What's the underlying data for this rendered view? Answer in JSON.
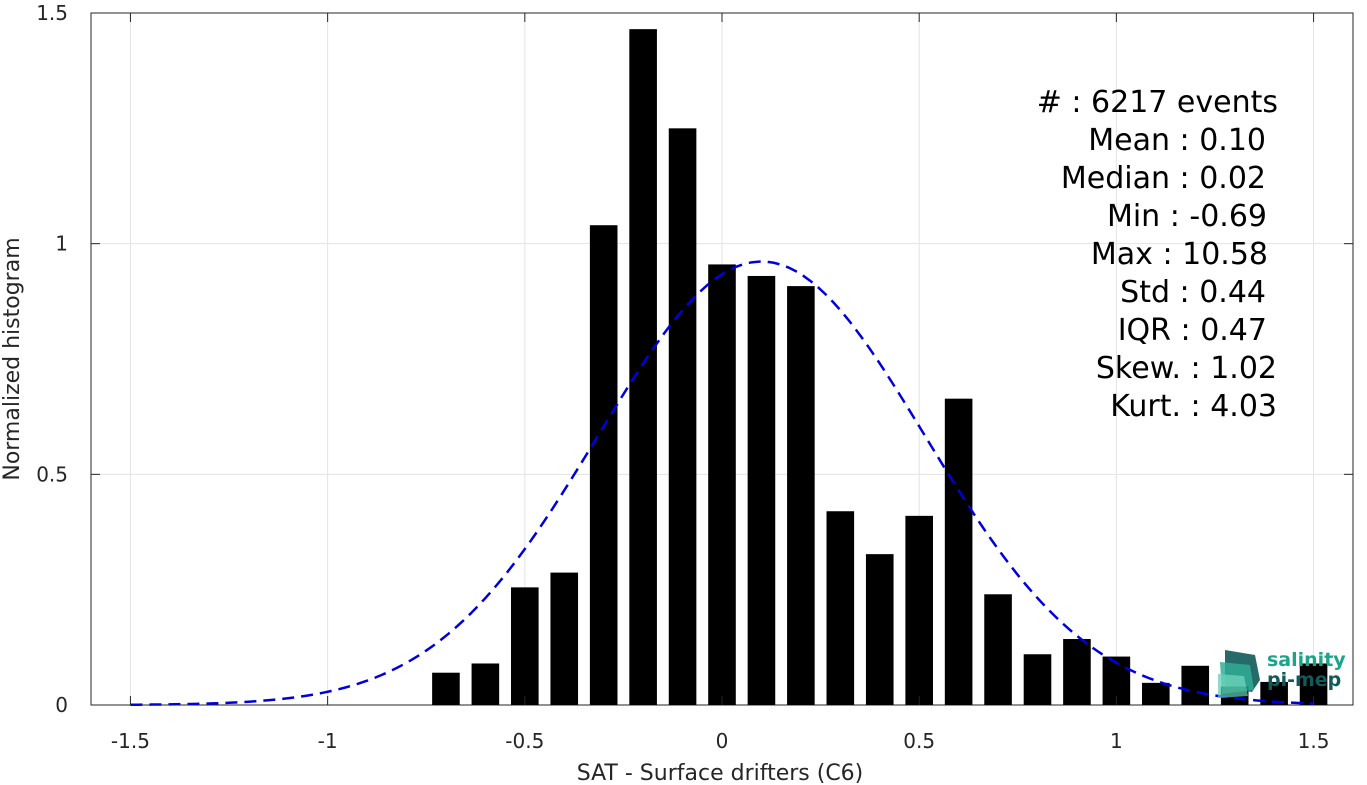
{
  "chart_data": {
    "type": "bar",
    "xlabel": "SAT - Surface drifters (C6)",
    "ylabel": "Normalized histogram",
    "xlim": [
      -1.6,
      1.6
    ],
    "ylim": [
      0,
      1.5
    ],
    "grid": true,
    "x_ticks": [
      -1.5,
      -1,
      -0.5,
      0,
      0.5,
      1,
      1.5
    ],
    "x_tick_labels": [
      "-1.5",
      "-1",
      "-0.5",
      "0",
      "0.5",
      "1",
      "1.5"
    ],
    "y_ticks": [
      0,
      0.5,
      1,
      1.5
    ],
    "y_tick_labels": [
      "0",
      "0.5",
      "1",
      "1.5"
    ],
    "bar_width": 0.07,
    "bar_color": "#000000",
    "bars": [
      {
        "x": -0.7,
        "value": 0.07
      },
      {
        "x": -0.6,
        "value": 0.09
      },
      {
        "x": -0.5,
        "value": 0.255
      },
      {
        "x": -0.4,
        "value": 0.287
      },
      {
        "x": -0.3,
        "value": 1.04
      },
      {
        "x": -0.2,
        "value": 1.465
      },
      {
        "x": -0.1,
        "value": 1.25
      },
      {
        "x": 0.0,
        "value": 0.955
      },
      {
        "x": 0.1,
        "value": 0.93
      },
      {
        "x": 0.2,
        "value": 0.908
      },
      {
        "x": 0.3,
        "value": 0.42
      },
      {
        "x": 0.4,
        "value": 0.327
      },
      {
        "x": 0.5,
        "value": 0.41
      },
      {
        "x": 0.6,
        "value": 0.664
      },
      {
        "x": 0.7,
        "value": 0.24
      },
      {
        "x": 0.8,
        "value": 0.11
      },
      {
        "x": 0.9,
        "value": 0.143
      },
      {
        "x": 1.0,
        "value": 0.105
      },
      {
        "x": 1.1,
        "value": 0.048
      },
      {
        "x": 1.2,
        "value": 0.085
      },
      {
        "x": 1.3,
        "value": 0.04
      },
      {
        "x": 1.4,
        "value": 0.05
      },
      {
        "x": 1.5,
        "value": 0.09
      }
    ],
    "fit_curve": {
      "style": "dashed",
      "color": "#0000dd",
      "mean": 0.1,
      "std": 0.415,
      "x_range": [
        -1.5,
        1.5
      ]
    },
    "stats_lines": [
      "#  : 6217 events",
      "Mean : 0.10",
      "Median : 0.02",
      "Min : -0.69",
      "Max : 10.58",
      "Std : 0.44",
      "IQR : 0.47",
      "Skew. : 1.02",
      "Kurt. : 4.03"
    ]
  },
  "logo": {
    "line1": "salinity",
    "line2": "pi-mep",
    "color_primary": "#1aa58a",
    "color_dark": "#0f5a5a"
  }
}
